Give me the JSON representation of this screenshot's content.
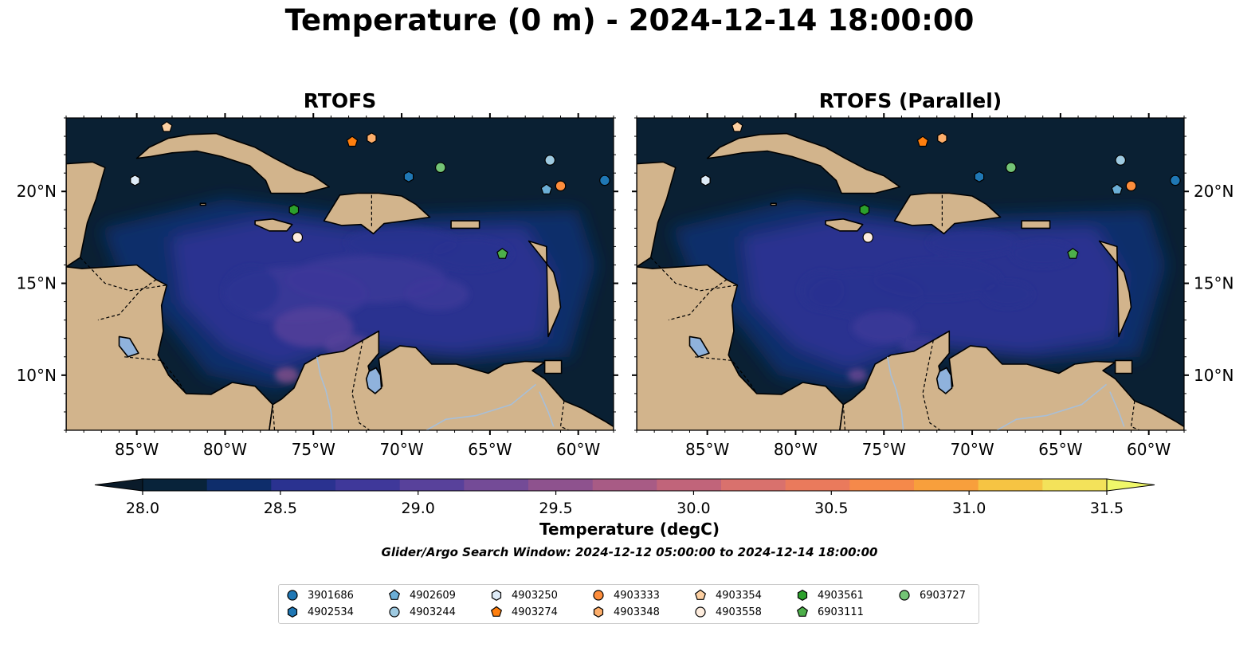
{
  "title": "Temperature (0 m) - 2024-12-14 18:00:00",
  "panels": [
    {
      "title": "RTOFS",
      "variant": "base"
    },
    {
      "title": "RTOFS (Parallel)",
      "variant": "parallel"
    }
  ],
  "map_extent": {
    "lon_min": -89,
    "lon_max": -58,
    "lat_min": 7,
    "lat_max": 24
  },
  "lon_ticks": [
    {
      "value": -85,
      "label": "85°W"
    },
    {
      "value": -80,
      "label": "80°W"
    },
    {
      "value": -75,
      "label": "75°W"
    },
    {
      "value": -70,
      "label": "70°W"
    },
    {
      "value": -65,
      "label": "65°W"
    },
    {
      "value": -60,
      "label": "60°W"
    }
  ],
  "lat_ticks": [
    {
      "value": 20,
      "label": "20°N"
    },
    {
      "value": 15,
      "label": "15°N"
    },
    {
      "value": 10,
      "label": "10°N"
    }
  ],
  "colorbar": {
    "label": "Temperature (degC)",
    "min": 28.0,
    "max": 31.5,
    "step": 0.25,
    "ticks": [
      "28.0",
      "28.5",
      "29.0",
      "29.5",
      "30.0",
      "30.5",
      "31.0",
      "31.5"
    ],
    "colors": [
      "#08233a",
      "#0e2d6b",
      "#2a3290",
      "#3f389a",
      "#58419b",
      "#744b97",
      "#8e528e",
      "#a85b85",
      "#c1647a",
      "#d9716d",
      "#ea7a5c",
      "#f5894a",
      "#f89f3c",
      "#f6c443",
      "#f3e25a"
    ],
    "under_color": "#0a1b2a",
    "over_color": "#f0f86a"
  },
  "colors": {
    "land": "#d2b48c",
    "ocean_dark": "#0a2033",
    "lake": "#8fb2dc",
    "river": "#a7bfd9"
  },
  "search_window": "Glider/Argo Search Window: 2024-12-12 05:00:00 to 2024-12-14 18:00:00",
  "floats": [
    {
      "id": "3901686",
      "marker": "circle",
      "color": "#1f77b4",
      "lon": -58.5,
      "lat": 20.6
    },
    {
      "id": "4902534",
      "marker": "hexagon",
      "color": "#1f77b4",
      "lon": -69.6,
      "lat": 20.8
    },
    {
      "id": "4902609",
      "marker": "pentagon",
      "color": "#6baed6",
      "lon": -61.8,
      "lat": 20.1
    },
    {
      "id": "4903244",
      "marker": "circle",
      "color": "#9ecae1",
      "lon": -61.6,
      "lat": 21.7
    },
    {
      "id": "4903250",
      "marker": "hexagon",
      "color": "#deebf7",
      "lon": -85.1,
      "lat": 20.6
    },
    {
      "id": "4903274",
      "marker": "pentagon",
      "color": "#ff7f0e",
      "lon": -72.8,
      "lat": 22.7
    },
    {
      "id": "4903333",
      "marker": "circle",
      "color": "#fd8d3c",
      "lon": -61.0,
      "lat": 20.3
    },
    {
      "id": "4903348",
      "marker": "hexagon",
      "color": "#fdae6b",
      "lon": -71.7,
      "lat": 22.9
    },
    {
      "id": "4903354",
      "marker": "pentagon",
      "color": "#fdd0a2",
      "lon": -83.3,
      "lat": 23.5
    },
    {
      "id": "4903558",
      "marker": "circle",
      "color": "#feedde",
      "lon": -75.9,
      "lat": 17.5
    },
    {
      "id": "4903561",
      "marker": "hexagon",
      "color": "#2ca02c",
      "lon": -76.1,
      "lat": 19.0
    },
    {
      "id": "6903111",
      "marker": "pentagon",
      "color": "#4daf4a",
      "lon": -64.3,
      "lat": 16.6
    },
    {
      "id": "6903727",
      "marker": "circle",
      "color": "#74c476",
      "lon": -67.8,
      "lat": 21.3
    }
  ]
}
